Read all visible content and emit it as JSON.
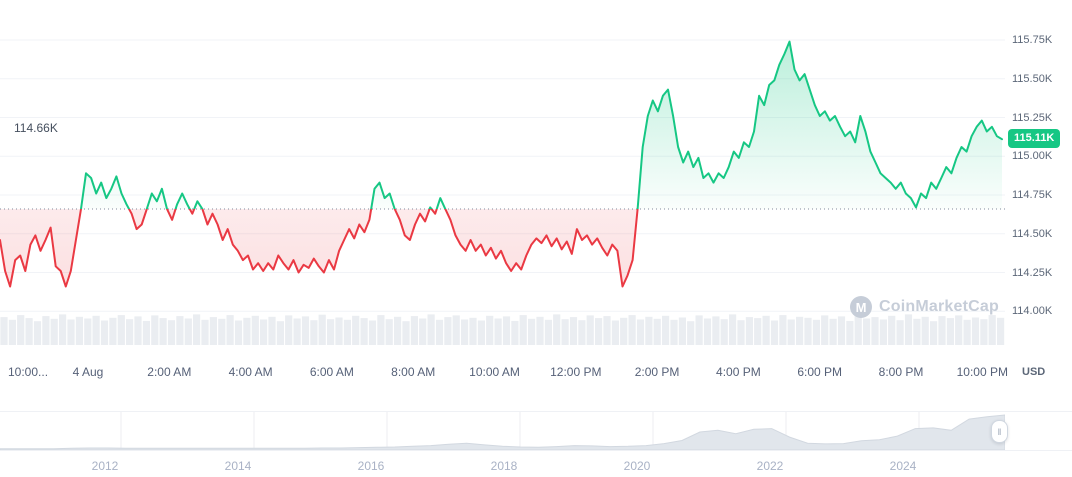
{
  "axis": {
    "unit": "USD"
  },
  "watermark": {
    "text": "CoinMarketCap",
    "logo_glyph": "M"
  },
  "scrubber": {
    "handle_glyph": "‖"
  },
  "chart_data": {
    "type": "line",
    "values_unit": "thousands of USD",
    "baseline": 114.66,
    "baseline_label": "114.66K",
    "last_price": 115.11,
    "last_price_label": "115.11K",
    "ylim": [
      113.95,
      115.9
    ],
    "colors": {
      "up": "#16c784",
      "down": "#ea3943"
    },
    "y_ticks": [
      "115.75K",
      "115.50K",
      "115.25K",
      "115.00K",
      "114.75K",
      "114.50K",
      "114.25K",
      "114.00K"
    ],
    "y_tick_values": [
      115.75,
      115.5,
      115.25,
      115.0,
      114.75,
      114.5,
      114.25,
      114.0
    ],
    "x_ticks": [
      "10:00...",
      "4 Aug",
      "2:00 AM",
      "4:00 AM",
      "6:00 AM",
      "8:00 AM",
      "10:00 AM",
      "12:00 PM",
      "2:00 PM",
      "4:00 PM",
      "6:00 PM",
      "8:00 PM",
      "10:00 PM"
    ],
    "series": [
      {
        "name": "price",
        "values": [
          114.46,
          114.26,
          114.16,
          114.33,
          114.36,
          114.26,
          114.43,
          114.49,
          114.39,
          114.46,
          114.54,
          114.29,
          114.26,
          114.16,
          114.26,
          114.46,
          114.66,
          114.89,
          114.86,
          114.76,
          114.83,
          114.73,
          114.79,
          114.87,
          114.76,
          114.69,
          114.63,
          114.53,
          114.56,
          114.66,
          114.76,
          114.71,
          114.79,
          114.66,
          114.59,
          114.69,
          114.76,
          114.69,
          114.63,
          114.71,
          114.66,
          114.56,
          114.63,
          114.56,
          114.46,
          114.53,
          114.43,
          114.39,
          114.33,
          114.36,
          114.27,
          114.31,
          114.26,
          114.31,
          114.27,
          114.36,
          114.31,
          114.27,
          114.33,
          114.25,
          114.3,
          114.28,
          114.34,
          114.29,
          114.25,
          114.33,
          114.27,
          114.39,
          114.46,
          114.53,
          114.47,
          114.56,
          114.51,
          114.59,
          114.79,
          114.83,
          114.73,
          114.76,
          114.66,
          114.59,
          114.49,
          114.46,
          114.56,
          114.63,
          114.58,
          114.67,
          114.63,
          114.73,
          114.66,
          114.59,
          114.49,
          114.43,
          114.39,
          114.46,
          114.39,
          114.43,
          114.36,
          114.41,
          114.34,
          114.39,
          114.31,
          114.26,
          114.31,
          114.27,
          114.36,
          114.43,
          114.47,
          114.44,
          114.49,
          114.42,
          114.47,
          114.4,
          114.45,
          114.37,
          114.53,
          114.46,
          114.49,
          114.43,
          114.47,
          114.41,
          114.36,
          114.43,
          114.39,
          114.16,
          114.23,
          114.33,
          114.66,
          115.06,
          115.26,
          115.36,
          115.29,
          115.39,
          115.43,
          115.26,
          115.06,
          114.96,
          115.03,
          114.93,
          114.99,
          114.86,
          114.89,
          114.83,
          114.89,
          114.86,
          114.93,
          115.03,
          114.99,
          115.09,
          115.06,
          115.16,
          115.39,
          115.33,
          115.46,
          115.49,
          115.59,
          115.66,
          115.74,
          115.56,
          115.49,
          115.53,
          115.43,
          115.33,
          115.26,
          115.29,
          115.23,
          115.26,
          115.19,
          115.13,
          115.16,
          115.09,
          115.26,
          115.16,
          115.03,
          114.96,
          114.89,
          114.86,
          114.83,
          114.79,
          114.83,
          114.76,
          114.73,
          114.67,
          114.76,
          114.73,
          114.83,
          114.79,
          114.86,
          114.93,
          114.89,
          114.99,
          115.06,
          115.03,
          115.13,
          115.19,
          115.23,
          115.16,
          115.19,
          115.13,
          115.11
        ]
      }
    ],
    "volume": [
      0.82,
      0.74,
      0.88,
      0.79,
      0.7,
      0.85,
      0.77,
      0.9,
      0.75,
      0.83,
      0.78,
      0.86,
      0.72,
      0.8,
      0.88,
      0.76,
      0.84,
      0.71,
      0.87,
      0.79,
      0.73,
      0.85,
      0.78,
      0.9,
      0.74,
      0.82,
      0.77,
      0.88,
      0.72,
      0.8,
      0.86,
      0.75,
      0.83,
      0.7,
      0.87,
      0.78,
      0.84,
      0.73,
      0.89,
      0.76,
      0.81,
      0.74,
      0.86,
      0.79,
      0.72,
      0.88,
      0.76,
      0.83,
      0.7,
      0.85,
      0.78,
      0.9,
      0.74,
      0.82,
      0.87,
      0.75,
      0.8,
      0.72,
      0.86,
      0.78,
      0.84,
      0.71,
      0.88,
      0.77,
      0.83,
      0.74,
      0.9,
      0.76,
      0.82,
      0.73,
      0.87,
      0.79,
      0.85,
      0.72,
      0.8,
      0.88,
      0.75,
      0.83,
      0.77,
      0.86,
      0.74,
      0.81,
      0.7,
      0.87,
      0.78,
      0.84,
      0.76,
      0.9,
      0.73,
      0.82,
      0.79,
      0.86,
      0.72,
      0.88,
      0.75,
      0.83,
      0.8,
      0.74,
      0.87,
      0.77,
      0.84,
      0.71,
      0.89,
      0.78,
      0.82,
      0.75,
      0.86,
      0.73,
      0.9,
      0.77,
      0.83,
      0.7,
      0.85,
      0.79,
      0.87,
      0.74,
      0.81,
      0.76,
      0.88,
      0.8
    ],
    "overview": {
      "years": [
        "2012",
        "2014",
        "2016",
        "2018",
        "2020",
        "2022",
        "2024"
      ],
      "values": [
        0.01,
        0.01,
        0.01,
        0.01,
        0.02,
        0.03,
        0.03,
        0.02,
        0.02,
        0.02,
        0.02,
        0.02,
        0.02,
        0.02,
        0.02,
        0.02,
        0.02,
        0.02,
        0.03,
        0.03,
        0.04,
        0.05,
        0.06,
        0.08,
        0.1,
        0.14,
        0.17,
        0.12,
        0.08,
        0.06,
        0.05,
        0.07,
        0.1,
        0.09,
        0.07,
        0.08,
        0.1,
        0.16,
        0.25,
        0.5,
        0.55,
        0.45,
        0.58,
        0.6,
        0.35,
        0.17,
        0.15,
        0.16,
        0.24,
        0.27,
        0.38,
        0.6,
        0.62,
        0.55,
        0.88,
        0.95,
        1.0
      ]
    }
  }
}
